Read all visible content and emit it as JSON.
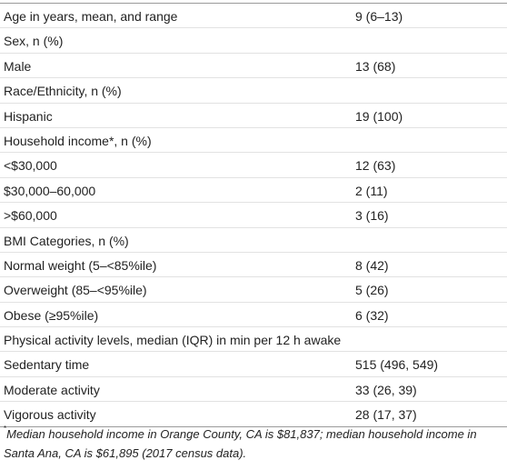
{
  "table": {
    "rows": [
      [
        "Age in years, mean, and range",
        "9 (6–13)"
      ],
      [
        "Sex, n (%)",
        null
      ],
      [
        "Male",
        "13 (68)"
      ],
      [
        "Race/Ethnicity, n (%)",
        null
      ],
      [
        "Hispanic",
        "19 (100)"
      ],
      [
        "Household income*, n (%)",
        null
      ],
      [
        "<$30,000",
        "12 (63)"
      ],
      [
        "$30,000–60,000",
        "2 (11)"
      ],
      [
        ">$60,000",
        "3 (16)"
      ],
      [
        "BMI Categories, n (%)",
        null
      ],
      [
        "Normal weight (5–<85%ile)",
        "8 (42)"
      ],
      [
        "Overweight (85–<95%ile)",
        "5 (26)"
      ],
      [
        "Obese (≥95%ile)",
        "6 (32)"
      ],
      [
        "Physical activity levels, median (IQR) in min per 12 h awake",
        null
      ],
      [
        "Sedentary time",
        "515 (496, 549)"
      ],
      [
        "Moderate activity",
        "33 (26, 39)"
      ],
      [
        "Vigorous activity",
        "28 (17, 37)"
      ]
    ]
  },
  "footnote": {
    "marker": "*",
    "text": "Median household income in Orange County, CA is $81,837; median household income in Santa Ana, CA is $61,895 (2017 census data)."
  }
}
